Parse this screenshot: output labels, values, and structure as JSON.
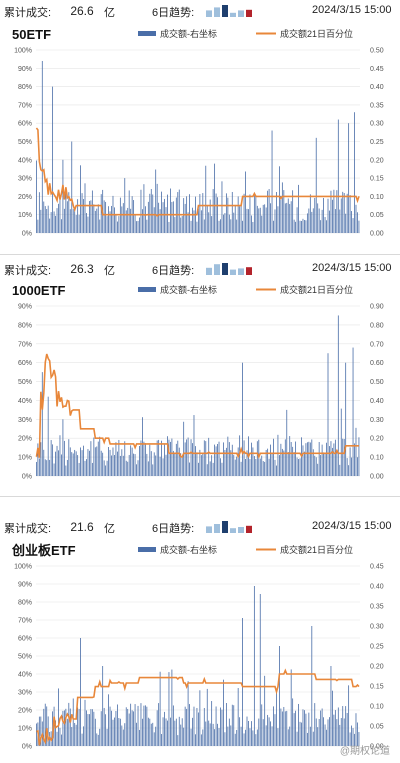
{
  "header_labels": {
    "cumulative": "累计成交:",
    "unit": "亿",
    "trend": "6日趋势:",
    "date": "2024/3/15 15:00"
  },
  "legend": {
    "volume": "成交额-右坐标",
    "percentile": "成交额21日百分位"
  },
  "colors": {
    "bar": "#4a6ea8",
    "line": "#e8873a",
    "mini_light": "#9fbfdc",
    "mini_dark": "#1f3f6e",
    "mini_red": "#b3232b"
  },
  "watermark": "@期权论道",
  "panels": [
    {
      "title": "50ETF",
      "cumulative_value": "26.6",
      "trend_bars": [
        0.55,
        0.8,
        1.0,
        0.35,
        0.55,
        0.6
      ],
      "trend_colors": [
        "light",
        "light",
        "dark",
        "light",
        "light",
        "red"
      ],
      "chart_data": {
        "type": "bar",
        "left_axis": [
          "0%",
          "10%",
          "20%",
          "30%",
          "40%",
          "50%",
          "60%",
          "70%",
          "80%",
          "90%",
          "100%"
        ],
        "right_axis": [
          "0.00",
          "0.05",
          "0.10",
          "0.15",
          "0.20",
          "0.25",
          "0.30",
          "0.35",
          "0.40",
          "0.45",
          "0.50"
        ],
        "ylim_right": [
          0,
          0.5
        ],
        "ylim_left": [
          0,
          100
        ],
        "n_bars": 220,
        "percentile_steps": [
          [
            0,
            60
          ],
          [
            2,
            35
          ],
          [
            6,
            25
          ],
          [
            12,
            20
          ],
          [
            18,
            22
          ],
          [
            25,
            15
          ],
          [
            45,
            10
          ],
          [
            100,
            10
          ],
          [
            110,
            15
          ],
          [
            140,
            20
          ],
          [
            220,
            20
          ]
        ],
        "spikes": [
          [
            4,
            0.47
          ],
          [
            11,
            0.4
          ],
          [
            18,
            0.2
          ],
          [
            24,
            0.25
          ],
          [
            60,
            0.15
          ],
          [
            120,
            0.12
          ],
          [
            160,
            0.28
          ],
          [
            190,
            0.26
          ],
          [
            205,
            0.31
          ],
          [
            212,
            0.3
          ],
          [
            216,
            0.33
          ]
        ]
      }
    },
    {
      "title": "1000ETF",
      "cumulative_value": "26.3",
      "trend_bars": [
        0.6,
        0.9,
        1.0,
        0.45,
        0.55,
        0.65
      ],
      "trend_colors": [
        "light",
        "light",
        "dark",
        "light",
        "light",
        "red"
      ],
      "chart_data": {
        "type": "bar",
        "left_axis": [
          "0%",
          "10%",
          "20%",
          "30%",
          "40%",
          "50%",
          "60%",
          "70%",
          "80%",
          "90%"
        ],
        "right_axis": [
          "0.00",
          "0.10",
          "0.20",
          "0.30",
          "0.40",
          "0.50",
          "0.60",
          "0.70",
          "0.80",
          "0.90"
        ],
        "ylim_right": [
          0,
          0.9
        ],
        "ylim_left": [
          0,
          90
        ],
        "n_bars": 220,
        "percentile_steps": [
          [
            0,
            10
          ],
          [
            3,
            40
          ],
          [
            6,
            60
          ],
          [
            10,
            55
          ],
          [
            14,
            40
          ],
          [
            22,
            35
          ],
          [
            30,
            25
          ],
          [
            40,
            20
          ],
          [
            50,
            17
          ],
          [
            90,
            12
          ],
          [
            150,
            12
          ],
          [
            210,
            16
          ],
          [
            220,
            18
          ]
        ],
        "spikes": [
          [
            4,
            0.55
          ],
          [
            8,
            0.42
          ],
          [
            18,
            0.3
          ],
          [
            140,
            0.6
          ],
          [
            170,
            0.35
          ],
          [
            198,
            0.65
          ],
          [
            205,
            0.85
          ],
          [
            210,
            0.6
          ],
          [
            215,
            0.68
          ]
        ]
      }
    },
    {
      "title": "创业板ETF",
      "cumulative_value": "21.6",
      "trend_bars": [
        0.55,
        0.75,
        1.0,
        0.4,
        0.5,
        0.6
      ],
      "trend_colors": [
        "light",
        "light",
        "dark",
        "light",
        "light",
        "red"
      ],
      "chart_data": {
        "type": "bar",
        "left_axis": [
          "0%",
          "10%",
          "20%",
          "30%",
          "40%",
          "50%",
          "60%",
          "70%",
          "80%",
          "90%",
          "100%"
        ],
        "right_axis": [
          "0.00",
          "0.05",
          "0.10",
          "0.15",
          "0.20",
          "0.25",
          "0.30",
          "0.35",
          "0.40",
          "0.45"
        ],
        "ylim_right": [
          0,
          0.45
        ],
        "ylim_left": [
          0,
          100
        ],
        "n_bars": 220,
        "percentile_steps": [
          [
            0,
            5
          ],
          [
            12,
            15
          ],
          [
            28,
            27
          ],
          [
            40,
            33
          ],
          [
            50,
            35
          ],
          [
            70,
            38
          ],
          [
            100,
            35
          ],
          [
            140,
            33
          ],
          [
            165,
            40
          ],
          [
            190,
            37
          ],
          [
            215,
            33
          ],
          [
            220,
            37
          ]
        ],
        "spikes": [
          [
            30,
            0.27
          ],
          [
            45,
            0.2
          ],
          [
            140,
            0.32
          ],
          [
            148,
            0.4
          ],
          [
            152,
            0.38
          ],
          [
            165,
            0.25
          ],
          [
            187,
            0.3
          ],
          [
            200,
            0.2
          ]
        ]
      }
    }
  ]
}
